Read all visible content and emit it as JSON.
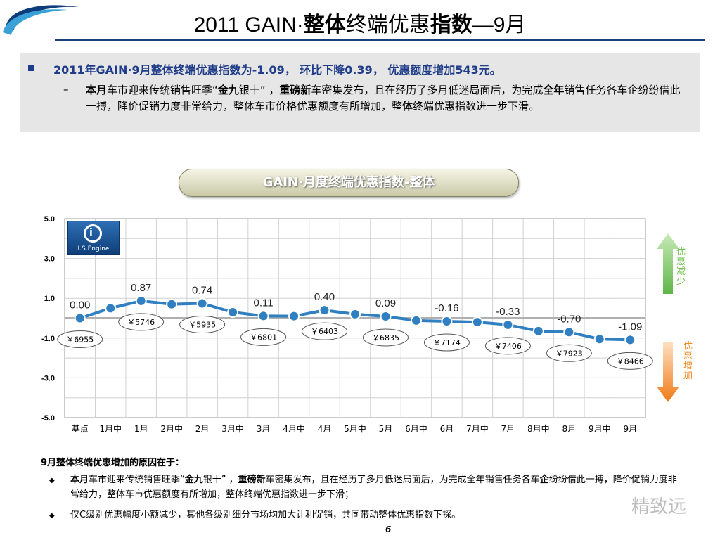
{
  "header": {
    "title_prefix": "2011 GAIN·",
    "title_bold1": "整体",
    "title_normal": "终端优惠",
    "title_bold2": "指数",
    "title_suffix": "—9月"
  },
  "summary": {
    "line": "2011年GAIN·9月整体终端优惠指数为-1.09，  环比下降0.39，  优惠额度增加543元。",
    "detail_parts": {
      "p1": "本月",
      "p2": "车市迎来传统销售旺季“",
      "p3": "金九",
      "p4": "银十” ，",
      "p5": "重磅新",
      "p6": "车密集发布，且在经历了多月低迷局面后，为完成",
      "p7": "全年",
      "p8": "销售任务各车企纷纷借此一搏，降价促销力度非常给力，整体车市价格优惠额度有所增加，整",
      "p9": "体",
      "p10": "终端优惠指数进一步下滑。"
    }
  },
  "chart_title": "GAIN·月度终端优惠指数-整体",
  "logo_text": "I.S.Engine",
  "side_labels": {
    "top": "优惠减少",
    "bottom": "优惠增加",
    "top_color": "#6cc04a",
    "bottom_color": "#f08a24"
  },
  "chart_data": {
    "type": "line",
    "categories": [
      "基点",
      "1月中",
      "1月",
      "2月中",
      "2月",
      "3月中",
      "3月",
      "4月中",
      "4月",
      "5月中",
      "5月",
      "6月中",
      "6月",
      "7月中",
      "7月",
      "8月中",
      "8月",
      "9月中",
      "9月"
    ],
    "values": [
      0.0,
      0.5,
      0.87,
      0.7,
      0.74,
      0.3,
      0.11,
      0.1,
      0.4,
      0.2,
      0.09,
      -0.12,
      -0.16,
      -0.2,
      -0.33,
      -0.65,
      -0.7,
      -1.05,
      -1.09
    ],
    "value_labels": [
      {
        "category": "基点",
        "text": "0.00"
      },
      {
        "category": "1月",
        "text": "0.87"
      },
      {
        "category": "2月",
        "text": "0.74"
      },
      {
        "category": "3月",
        "text": "0.11"
      },
      {
        "category": "4月",
        "text": "0.40"
      },
      {
        "category": "5月",
        "text": "0.09"
      },
      {
        "category": "6月",
        "text": "-0.16"
      },
      {
        "category": "7月",
        "text": "-0.33"
      },
      {
        "category": "8月",
        "text": "-0.70"
      },
      {
        "category": "9月",
        "text": "-1.09"
      }
    ],
    "price_labels": [
      {
        "category": "基点",
        "text": "￥6955"
      },
      {
        "category": "1月",
        "text": "￥5746"
      },
      {
        "category": "2月",
        "text": "￥5935"
      },
      {
        "category": "3月",
        "text": "￥6801"
      },
      {
        "category": "4月",
        "text": "￥6403"
      },
      {
        "category": "5月",
        "text": "￥6835"
      },
      {
        "category": "6月",
        "text": "￥7174"
      },
      {
        "category": "7月",
        "text": "￥7406"
      },
      {
        "category": "8月",
        "text": "￥7923"
      },
      {
        "category": "9月",
        "text": "￥8466"
      }
    ],
    "y_ticks": [
      "5.0",
      "3.0",
      "1.0",
      "-1.0",
      "-3.0",
      "-5.0"
    ],
    "ylim": [
      -5,
      5
    ],
    "grid": true,
    "line_color": "#2f7fc1",
    "baseline_color": "#b0b0b0"
  },
  "reasons": {
    "title": "9月整体终端优惠增加的原因在于：",
    "item1": {
      "p1": "本月",
      "p2": "车市迎来传统销售旺季“",
      "p3": "金九",
      "p4": "银十” ，",
      "p5": "重磅新",
      "p6": "车密集发布，且在经历了多月低迷局面后，为完成全年销售任务各车",
      "p7": "企",
      "p8": "纷纷借此一搏，降价促销力度非常给力，整体车市优惠额度有所增加，整体终端优惠指数进一步下滑；"
    },
    "item2": "仅C级别优惠幅度小额减少，其他各级别细分市场均加大让利促销，共同带动整体优惠指数下探。"
  },
  "page_number": "6",
  "watermark": "精致远"
}
